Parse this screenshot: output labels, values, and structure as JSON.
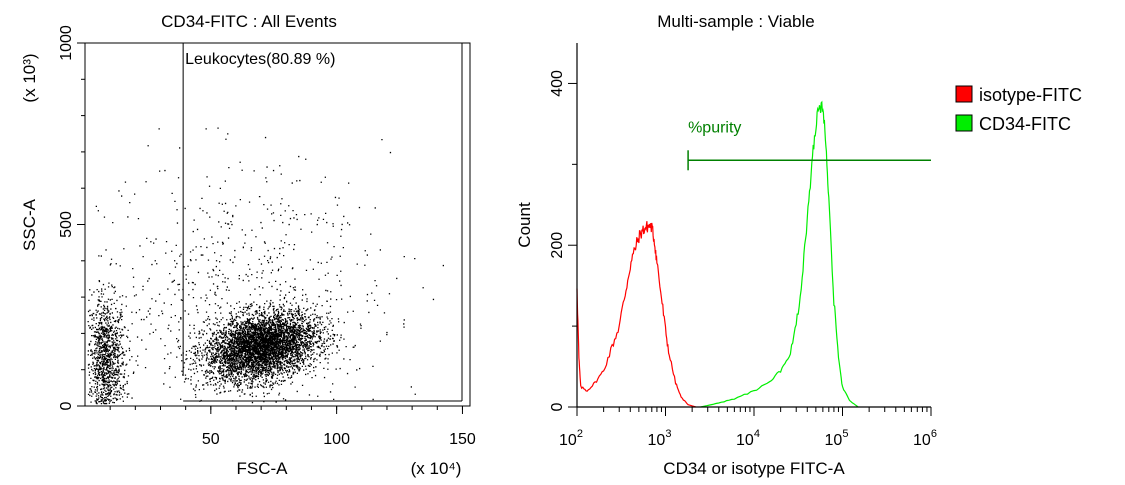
{
  "colors": {
    "isotype": "#ff0000",
    "cd34": "#00ee00",
    "gate_line": "#008000",
    "points": "#000000"
  },
  "chart_data": [
    {
      "type": "scatter",
      "title": "CD34-FITC : All Events",
      "xlabel": "FSC-A",
      "ylabel": "SSC-A",
      "x_multiplier_label": "(x 10⁴)",
      "y_multiplier_label": "(x 10³)",
      "xlim": [
        0,
        153
      ],
      "ylim": [
        0,
        1000
      ],
      "x_ticks": [
        50,
        100,
        150
      ],
      "y_ticks": [
        0,
        500,
        1000
      ],
      "gate": {
        "label": "Leukocytes(80.89 %)",
        "x_range": [
          39,
          153
        ],
        "y_range": [
          0,
          1000
        ]
      },
      "populations": [
        {
          "name": "debris",
          "x_mean": 8,
          "x_sd": 4,
          "y_mean": 120,
          "y_sd": 90,
          "fraction": 0.18
        },
        {
          "name": "leukocytes",
          "x_mean": 70,
          "x_sd": 11,
          "y_mean": 165,
          "y_sd": 45,
          "fraction": 0.72
        },
        {
          "name": "sparse",
          "x_mean": 60,
          "x_sd": 30,
          "y_mean": 330,
          "y_sd": 170,
          "fraction": 0.1
        }
      ],
      "legend": "none",
      "grid": false
    },
    {
      "type": "line",
      "title": "Multi-sample : Viable",
      "xlabel": "CD34 or isotype FITC-A",
      "ylabel": "Count",
      "x_scale": "log",
      "xlim": [
        100,
        1000000
      ],
      "ylim": [
        0,
        450
      ],
      "x_tick_labels": [
        {
          "base": "10",
          "exp": "2"
        },
        {
          "base": "10",
          "exp": "3"
        },
        {
          "base": "10",
          "exp": "4"
        },
        {
          "base": "10",
          "exp": "5"
        },
        {
          "base": "10",
          "exp": "6"
        }
      ],
      "y_ticks": [
        0,
        200,
        400
      ],
      "gate": {
        "label": "%purity",
        "x_start": 1800,
        "x_end": 1000000,
        "y": 305
      },
      "series": [
        {
          "name": "isotype-FITC",
          "x": [
            100,
            105,
            110,
            130,
            160,
            200,
            250,
            300,
            350,
            400,
            450,
            500,
            550,
            600,
            650,
            700,
            750,
            800,
            900,
            1000,
            1100,
            1300,
            1500,
            1800,
            2200
          ],
          "y": [
            150,
            60,
            25,
            20,
            30,
            45,
            75,
            100,
            140,
            175,
            195,
            210,
            218,
            222,
            224,
            222,
            205,
            180,
            135,
            95,
            65,
            30,
            12,
            3,
            0
          ]
        },
        {
          "name": "CD34-FITC",
          "x": [
            2500,
            4000,
            6000,
            10000,
            15000,
            20000,
            25000,
            30000,
            35000,
            40000,
            45000,
            50000,
            55000,
            60000,
            65000,
            70000,
            80000,
            90000,
            100000,
            120000,
            150000
          ],
          "y": [
            0,
            5,
            10,
            20,
            30,
            45,
            60,
            100,
            160,
            230,
            300,
            350,
            372,
            368,
            330,
            260,
            130,
            60,
            25,
            8,
            0
          ]
        }
      ],
      "legend": "right"
    }
  ]
}
